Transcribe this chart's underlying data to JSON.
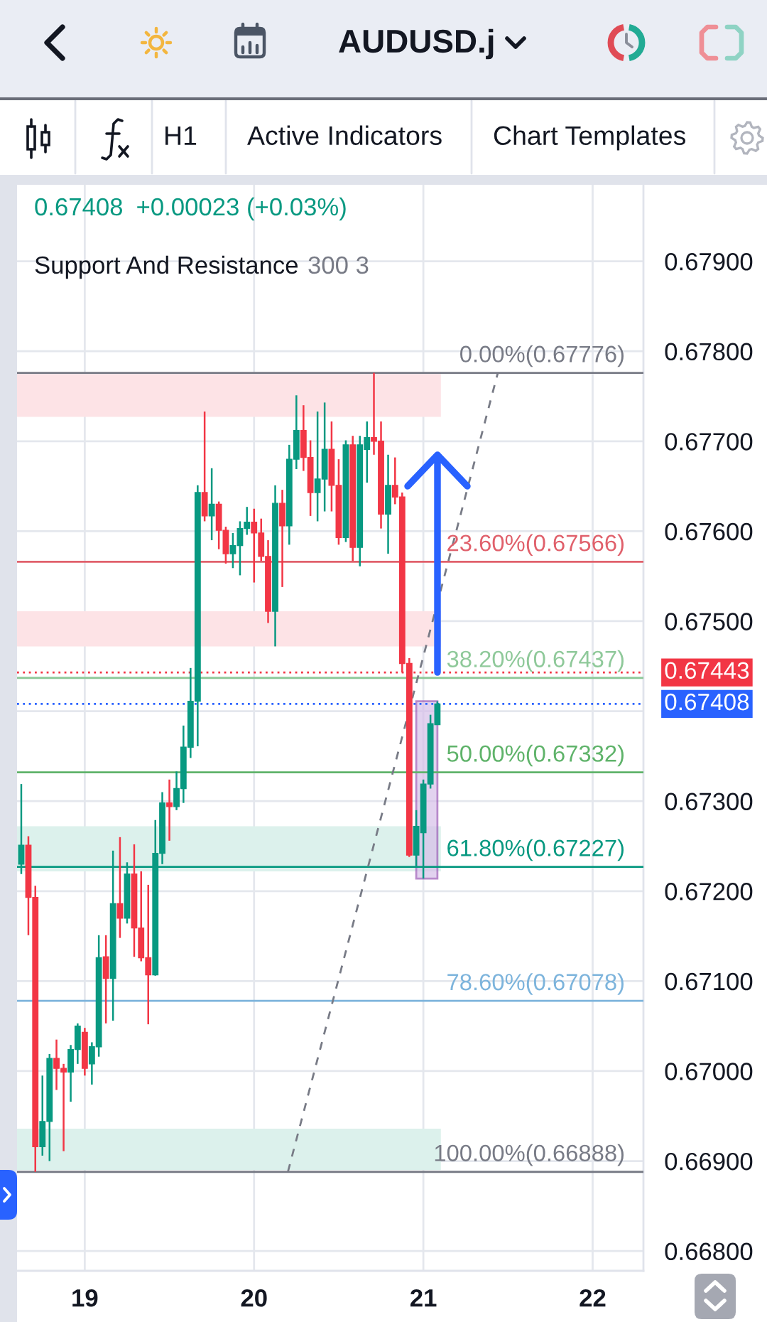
{
  "chart_data": {
    "type": "candlestick",
    "title": "AUDUSD.j",
    "annotations": [
      "H1",
      "Active Indicators",
      "Chart Templates",
      "0.67408",
      "+0.00023 (+0.03%)",
      "Support And Resistance",
      "300 3"
    ],
    "x": [
      18.625,
      18.667,
      18.708,
      18.75,
      18.792,
      18.833,
      18.875,
      18.917,
      18.958,
      19,
      19.042,
      19.083,
      19.125,
      19.167,
      19.208,
      19.25,
      19.292,
      19.333,
      19.375,
      19.417,
      19.458,
      19.5,
      19.542,
      19.583,
      19.625,
      19.667,
      19.708,
      19.75,
      19.792,
      19.833,
      19.875,
      19.917,
      19.958,
      20,
      20.042,
      20.083,
      20.125,
      20.167,
      20.208,
      20.25,
      20.292,
      20.333,
      20.375,
      20.417,
      20.458,
      20.5,
      20.542,
      20.583,
      20.625,
      20.667,
      20.708,
      20.75,
      20.792,
      20.833,
      20.875,
      20.917,
      20.958,
      21,
      21.042,
      21.083
    ],
    "ohlc": [
      [
        0.6723,
        0.67319,
        0.67219,
        0.67251
      ],
      [
        0.67251,
        0.67261,
        0.67151,
        0.67193
      ],
      [
        0.67193,
        0.67206,
        0.66888,
        0.66916
      ],
      [
        0.66916,
        0.66995,
        0.66906,
        0.66944
      ],
      [
        0.66944,
        0.67019,
        0.669,
        0.67014
      ],
      [
        0.67014,
        0.67035,
        0.66979,
        0.67003
      ],
      [
        0.67003,
        0.67008,
        0.66911,
        0.66999
      ],
      [
        0.66999,
        0.67029,
        0.66966,
        0.67024
      ],
      [
        0.67024,
        0.67053,
        0.67008,
        0.6705
      ],
      [
        0.67043,
        0.67048,
        0.66995,
        0.67003
      ],
      [
        0.67008,
        0.67032,
        0.66985,
        0.67027
      ],
      [
        0.67027,
        0.67151,
        0.67016,
        0.67126
      ],
      [
        0.67127,
        0.67151,
        0.67053,
        0.67103
      ],
      [
        0.67103,
        0.67245,
        0.67056,
        0.67186
      ],
      [
        0.67186,
        0.6726,
        0.67148,
        0.6717
      ],
      [
        0.6717,
        0.67232,
        0.67164,
        0.67219
      ],
      [
        0.67219,
        0.67252,
        0.67127,
        0.67159
      ],
      [
        0.67159,
        0.67222,
        0.67122,
        0.67126
      ],
      [
        0.67126,
        0.67207,
        0.67052,
        0.67107
      ],
      [
        0.67107,
        0.67279,
        0.67106,
        0.67242
      ],
      [
        0.67242,
        0.6731,
        0.6723,
        0.67298
      ],
      [
        0.67298,
        0.67324,
        0.67256,
        0.67294
      ],
      [
        0.67294,
        0.67333,
        0.6729,
        0.67314
      ],
      [
        0.67314,
        0.67384,
        0.67298,
        0.6736
      ],
      [
        0.6736,
        0.67448,
        0.67348,
        0.67411
      ],
      [
        0.67411,
        0.67651,
        0.67361,
        0.67643
      ],
      [
        0.67643,
        0.67733,
        0.67611,
        0.67617
      ],
      [
        0.67617,
        0.6767,
        0.6759,
        0.6763
      ],
      [
        0.6763,
        0.67633,
        0.6758,
        0.67601
      ],
      [
        0.67601,
        0.67605,
        0.67564,
        0.67575
      ],
      [
        0.67575,
        0.67598,
        0.67559,
        0.67584
      ],
      [
        0.67584,
        0.67611,
        0.67551,
        0.67603
      ],
      [
        0.67603,
        0.67627,
        0.67596,
        0.6761
      ],
      [
        0.6761,
        0.67625,
        0.67543,
        0.67598
      ],
      [
        0.67598,
        0.67614,
        0.67567,
        0.67572
      ],
      [
        0.67572,
        0.6759,
        0.67498,
        0.67511
      ],
      [
        0.67511,
        0.67651,
        0.67472,
        0.67631
      ],
      [
        0.67631,
        0.67646,
        0.67538,
        0.67606
      ],
      [
        0.67606,
        0.67696,
        0.67585,
        0.6768
      ],
      [
        0.6768,
        0.67751,
        0.67669,
        0.67712
      ],
      [
        0.67712,
        0.6774,
        0.67667,
        0.67682
      ],
      [
        0.67682,
        0.67701,
        0.67617,
        0.67643
      ],
      [
        0.67643,
        0.67733,
        0.67611,
        0.67658
      ],
      [
        0.67658,
        0.67743,
        0.67622,
        0.67691
      ],
      [
        0.67691,
        0.67722,
        0.67622,
        0.67651
      ],
      [
        0.67651,
        0.6768,
        0.67585,
        0.67593
      ],
      [
        0.67593,
        0.67701,
        0.67588,
        0.67696
      ],
      [
        0.67696,
        0.67706,
        0.67567,
        0.67582
      ],
      [
        0.67582,
        0.67706,
        0.67561,
        0.67696
      ],
      [
        0.67691,
        0.67722,
        0.67654,
        0.67704
      ],
      [
        0.67704,
        0.67776,
        0.67685,
        0.677
      ],
      [
        0.677,
        0.67722,
        0.67603,
        0.67619
      ],
      [
        0.67619,
        0.67685,
        0.67575,
        0.67651
      ],
      [
        0.67651,
        0.67682,
        0.6763,
        0.67638
      ],
      [
        0.67638,
        0.67643,
        0.67443,
        0.67453
      ],
      [
        0.67453,
        0.67459,
        0.67238,
        0.6724
      ],
      [
        0.6724,
        0.6729,
        0.67227,
        0.67272
      ],
      [
        0.67265,
        0.67324,
        0.67214,
        0.67319
      ],
      [
        0.67319,
        0.67396,
        0.67314,
        0.67386
      ],
      [
        0.67385,
        0.67411,
        0.67385,
        0.67408
      ]
    ],
    "colors": [
      "#089981",
      "#f23645",
      "#f23645",
      "#089981",
      "#089981",
      "#f23645",
      "#f23645",
      "#089981",
      "#089981",
      "#f23645",
      "#089981",
      "#089981",
      "#f23645",
      "#089981",
      "#f23645",
      "#089981",
      "#f23645",
      "#f23645",
      "#f23645",
      "#089981",
      "#089981",
      "#f23645",
      "#089981",
      "#089981",
      "#089981",
      "#089981",
      "#f23645",
      "#089981",
      "#f23645",
      "#f23645",
      "#089981",
      "#089981",
      "#089981",
      "#f23645",
      "#f23645",
      "#f23645",
      "#089981",
      "#f23645",
      "#089981",
      "#089981",
      "#f23645",
      "#f23645",
      "#089981",
      "#089981",
      "#f23645",
      "#f23645",
      "#089981",
      "#f23645",
      "#089981",
      "#089981",
      "#f23645",
      "#f23645",
      "#089981",
      "#f23645",
      "#f23645",
      "#f23645",
      "#089981",
      "#089981",
      "#089981",
      "#089981"
    ],
    "series": [
      {
        "type": "line",
        "x": [
          20.2,
          21.44
        ],
        "values": [
          0.66888,
          0.67776
        ],
        "color": "#787b86",
        "line_style": "dashed"
      }
    ],
    "ref_lines": [
      {
        "axis": "y",
        "value": 0.67776,
        "label": "0.00%(0.67776)",
        "color": "#787b86"
      },
      {
        "axis": "y",
        "value": 0.67566,
        "label": "23.60%(0.67566)",
        "color": "#e0606b"
      },
      {
        "axis": "y",
        "value": 0.67437,
        "label": "38.20%(0.67437)",
        "color": "#8fc99a"
      },
      {
        "axis": "y",
        "value": 0.67332,
        "label": "50.00%(0.67332)",
        "color": "#5fb36a"
      },
      {
        "axis": "y",
        "value": 0.67227,
        "label": "61.80%(0.67227)",
        "color": "#089981"
      },
      {
        "axis": "y",
        "value": 0.67078,
        "label": "78.60%(0.67078)",
        "color": "#7db4dc"
      },
      {
        "axis": "y",
        "value": 0.66888,
        "label": "100.00%(0.66888)",
        "color": "#787b86"
      },
      {
        "axis": "y",
        "value": 0.67443,
        "label": "0.67443",
        "color": "#f23645",
        "line_style": "dotted"
      },
      {
        "axis": "y",
        "value": 0.67408,
        "label": "0.67408",
        "color": "#2962ff",
        "line_style": "dotted"
      }
    ],
    "bands": [
      {
        "axis": "y",
        "from": 0.67727,
        "to": 0.67777,
        "color": "#fde3e6"
      },
      {
        "axis": "y",
        "from": 0.67472,
        "to": 0.67511,
        "color": "#fde3e6"
      },
      {
        "axis": "y",
        "from": 0.67222,
        "to": 0.67272,
        "color": "#dcf1ec"
      },
      {
        "axis": "y",
        "from": 0.6689,
        "to": 0.66936,
        "color": "#dcf1ec"
      }
    ],
    "xlim": [
      18.6,
      22.3
    ],
    "xticks": [
      19,
      20,
      21,
      22
    ],
    "ylim": [
      0.66778,
      0.67985
    ],
    "yticks": [
      {
        "value": 0.668,
        "label": "0.66800"
      },
      {
        "value": 0.669,
        "label": "0.66900"
      },
      {
        "value": 0.67,
        "label": "0.67000"
      },
      {
        "value": 0.671,
        "label": "0.67100"
      },
      {
        "value": 0.672,
        "label": "0.67200"
      },
      {
        "value": 0.673,
        "label": "0.67300"
      },
      {
        "value": 0.674,
        "label": null
      },
      {
        "value": 0.675,
        "label": "0.67500"
      },
      {
        "value": 0.676,
        "label": "0.67600"
      },
      {
        "value": 0.677,
        "label": "0.67700"
      },
      {
        "value": 0.678,
        "label": "0.67800"
      },
      {
        "value": 0.679,
        "label": "0.67900"
      }
    ],
    "grid": true
  }
}
